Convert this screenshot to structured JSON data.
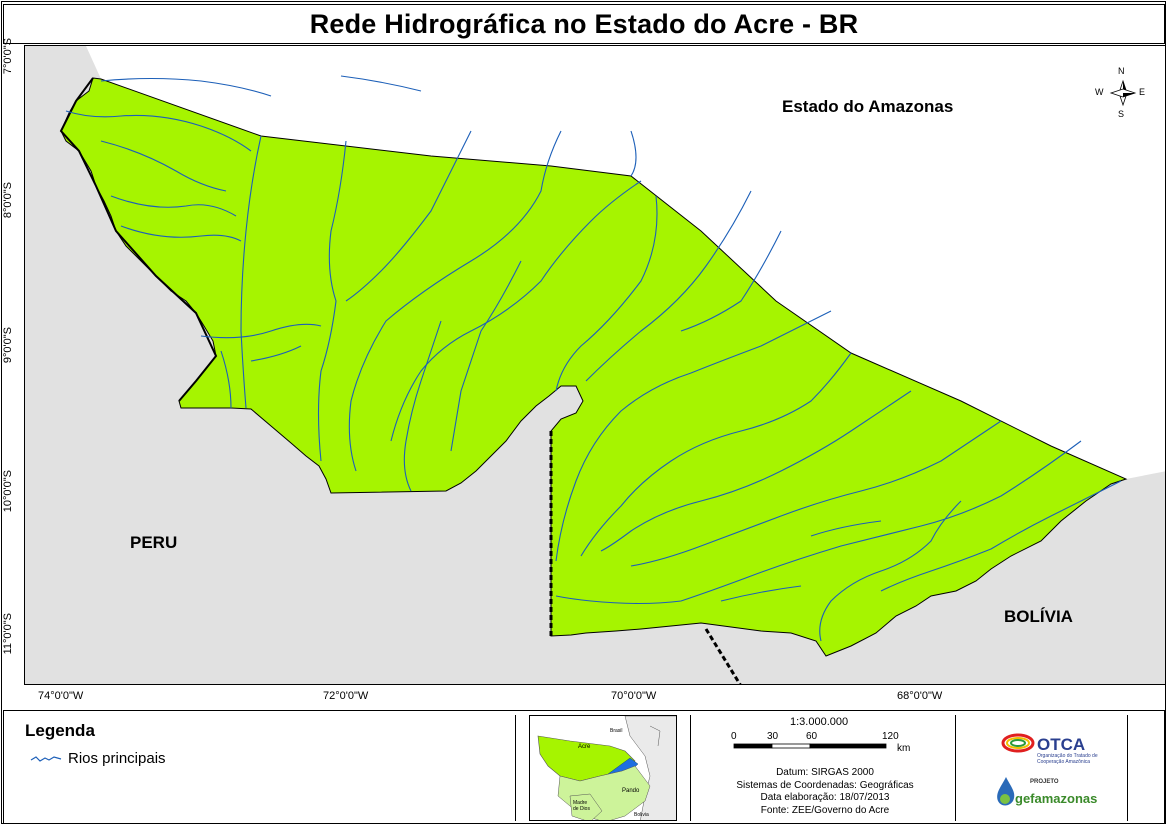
{
  "title": "Rede Hidrográfica no Estado do Acre - BR",
  "map": {
    "lat_labels": [
      "7°0'0\"S",
      "8°0'0\"S",
      "9°0'0\"S",
      "10°0'0\"S",
      "11°0'0\"S"
    ],
    "lon_labels": [
      "74°0'0\"W",
      "72°0'0\"W",
      "70°0'0\"W",
      "68°0'0\"W"
    ],
    "places": {
      "amazonas": "Estado do Amazonas",
      "peru": "PERU",
      "bolivia": "BOLÍVIA"
    },
    "north_arrow": {
      "n": "N",
      "s": "S",
      "e": "E",
      "w": "W"
    },
    "colors": {
      "acre_fill": "#a6f400",
      "neighbor_fill": "#e1e1e1",
      "river": "#1c5fb8"
    }
  },
  "legend": {
    "title": "Legenda",
    "items": [
      {
        "label": "Rios principais",
        "color": "#1c5fb8"
      }
    ]
  },
  "inset": {
    "labels": {
      "brasil": "Brasil",
      "acre": "Acre",
      "pando": "Pando",
      "madre_de_dios": "Madre\nde Dios",
      "bolivia": "Bolivia"
    }
  },
  "scale": {
    "ratio": "1:3.000.000",
    "ticks": [
      "0",
      "30",
      "60",
      "120"
    ],
    "unit": "km"
  },
  "info": {
    "datum": "Datum: SIRGAS 2000",
    "coords": "Sistemas de Coordenadas: Geográficas",
    "date": "Data elaboração: 18/07/2013",
    "source": "Fonte: ZEE/Governo do Acre"
  },
  "logos": {
    "otca": "OTCA",
    "otca_sub": "Organização do Tratado de Cooperação Amazônica",
    "projeto": "PROJETO",
    "gef": "gefamazonas"
  }
}
